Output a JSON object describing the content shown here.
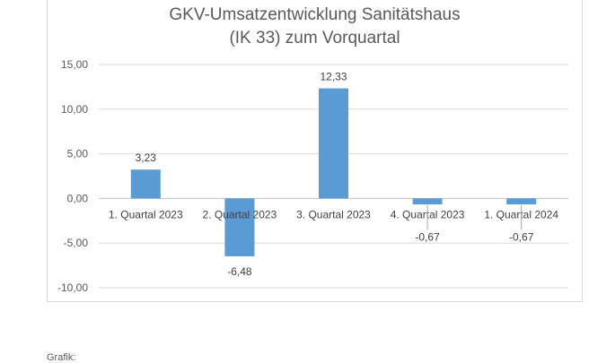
{
  "chart_data": {
    "type": "bar",
    "title_line1": "GKV-Umsatzentwicklung Sanitätshaus",
    "title_line2": "(IK 33) zum Vorquartal",
    "categories": [
      "1. Quartal 2023",
      "2. Quartal 2023",
      "3. Quartal 2023",
      "4. Quartal 2023",
      "1. Quartal 2024"
    ],
    "values": [
      3.23,
      -6.48,
      12.33,
      -0.67,
      -0.67
    ],
    "value_labels": [
      "3,23",
      "-6,48",
      "12,33",
      "-0,67",
      "-0,67"
    ],
    "y_ticks": [
      15,
      10,
      5,
      0,
      -5,
      -10
    ],
    "y_tick_labels": [
      "15,00",
      "10,00",
      "5,00",
      "0,00",
      "-5,00",
      "-10,00"
    ],
    "ylim": [
      -10,
      15
    ],
    "grid": true,
    "bar_color": "#5b9bd5"
  },
  "footer": {
    "text": "Grafik:"
  }
}
